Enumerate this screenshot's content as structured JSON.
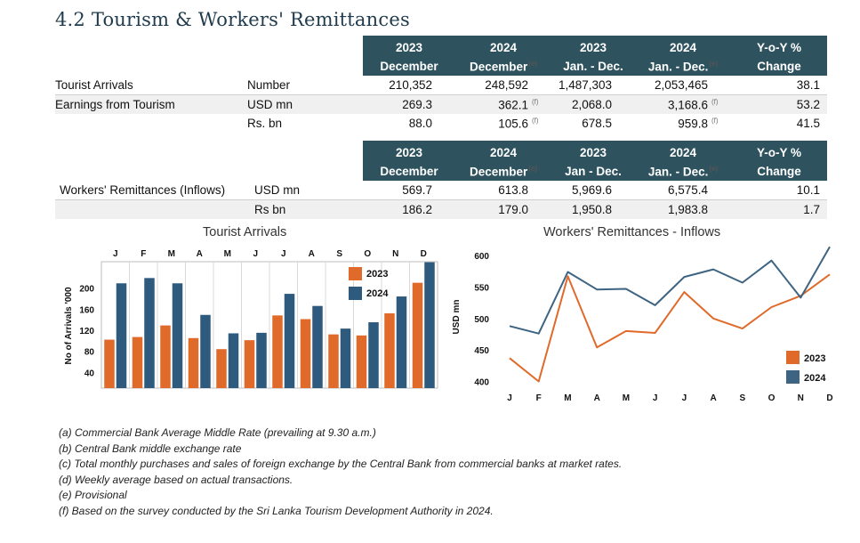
{
  "title": "4.2 Tourism & Workers' Remittances",
  "table1": {
    "headers": [
      {
        "year": "2023",
        "period": "December",
        "sup": ""
      },
      {
        "year": "2024",
        "period": "December",
        "sup": "(e)"
      },
      {
        "year": "2023",
        "period": "Jan. - Dec.",
        "sup": ""
      },
      {
        "year": "2024",
        "period": "Jan. - Dec.",
        "sup": "(e)"
      },
      {
        "year": "Y-o-Y %",
        "period": "Change",
        "sup": ""
      }
    ],
    "rows": [
      {
        "label": "Tourist Arrivals",
        "unit": "Number",
        "v": [
          "210,352",
          "248,592",
          "1,487,303",
          "2,053,465",
          "38.1"
        ],
        "f": [
          "",
          "",
          "",
          "",
          ""
        ]
      },
      {
        "label": "Earnings from Tourism",
        "unit": "USD mn",
        "v": [
          "269.3",
          "362.1",
          "2,068.0",
          "3,168.6",
          "53.2"
        ],
        "f": [
          "",
          "(f)",
          "",
          "(f)",
          ""
        ]
      },
      {
        "label": "",
        "unit": "Rs. bn",
        "v": [
          "88.0",
          "105.6",
          "678.5",
          "959.8",
          "41.5"
        ],
        "f": [
          "",
          "(f)",
          "",
          "(f)",
          ""
        ]
      }
    ]
  },
  "table2": {
    "headers": [
      {
        "year": "2023",
        "period": "December",
        "sup": ""
      },
      {
        "year": "2024",
        "period": "December",
        "sup": "(e)"
      },
      {
        "year": "2023",
        "period": "Jan - Dec.",
        "sup": ""
      },
      {
        "year": "2024",
        "period": "Jan. - Dec.",
        "sup": "(e)"
      },
      {
        "year": "Y-o-Y %",
        "period": "Change",
        "sup": ""
      }
    ],
    "rows": [
      {
        "label": "Workers' Remittances (Inflows)",
        "unit": "USD mn",
        "v": [
          "569.7",
          "613.8",
          "5,969.6",
          "6,575.4",
          "10.1"
        ]
      },
      {
        "label": "",
        "unit": "Rs bn",
        "v": [
          "186.2",
          "179.0",
          "1,950.8",
          "1,983.8",
          "1.7"
        ]
      }
    ]
  },
  "chart_data": [
    {
      "type": "bar",
      "title": "Tourist Arrivals",
      "ylabel": "No of Arrivals '000",
      "xlabel": "",
      "categories": [
        "J",
        "F",
        "M",
        "A",
        "M",
        "J",
        "J",
        "A",
        "S",
        "O",
        "N",
        "D"
      ],
      "yticks": [
        "40",
        "80",
        "120",
        "160",
        "200"
      ],
      "ylim": [
        10,
        250
      ],
      "series": [
        {
          "name": "2023",
          "color": "#e06a2a",
          "values": [
            102,
            107,
            129,
            105,
            84,
            101,
            148,
            141,
            112,
            110,
            152,
            210
          ]
        },
        {
          "name": "2024",
          "color": "#2e5a7e",
          "values": [
            209,
            219,
            209,
            149,
            114,
            115,
            189,
            166,
            123,
            135,
            184,
            249
          ]
        }
      ],
      "legend": "top-right",
      "grid": false
    },
    {
      "type": "line",
      "title": "Workers' Remittances - Inflows",
      "ylabel": "USD mn",
      "xlabel": "",
      "categories": [
        "J",
        "F",
        "M",
        "A",
        "M",
        "J",
        "J",
        "A",
        "S",
        "O",
        "N",
        "D"
      ],
      "yticks": [
        "400",
        "450",
        "500",
        "550",
        "600"
      ],
      "ylim": [
        395,
        610
      ],
      "series": [
        {
          "name": "2023",
          "color": "#e06a2a",
          "values": [
            437,
            400,
            567,
            454,
            480,
            477,
            542,
            500,
            484,
            518,
            536,
            570
          ]
        },
        {
          "name": "2024",
          "color": "#3d6482",
          "values": [
            488,
            476,
            574,
            546,
            547,
            521,
            566,
            578,
            557,
            592,
            533,
            614
          ]
        }
      ],
      "legend": "bottom-right",
      "grid": false
    }
  ],
  "notes": [
    "(a) Commercial Bank Average Middle Rate (prevailing at 9.30 a.m.)",
    "(b) Central Bank middle exchange rate",
    "(c) Total monthly purchases and sales of foreign exchange by the Central Bank from commercial banks at market rates.",
    "(d) Weekly average based on actual transactions.",
    "(e) Provisional",
    "(f) Based on the survey conducted by the Sri Lanka Tourism Development Authority in 2024."
  ]
}
